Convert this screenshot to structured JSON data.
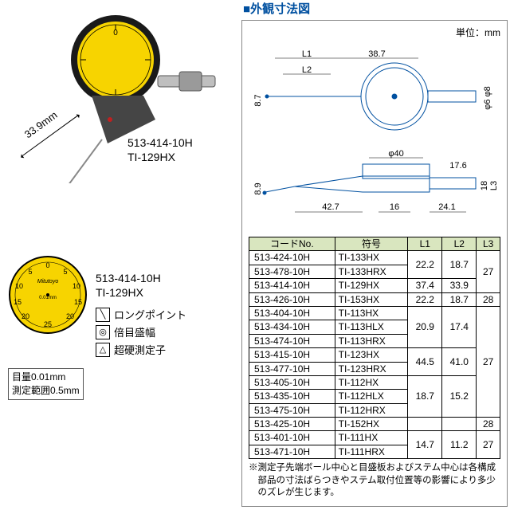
{
  "left": {
    "stylus_dim": "33.9mm",
    "model_top": {
      "code": "513-414-10H",
      "name": "TI-129HX"
    },
    "model_bottom": {
      "code": "513-414-10H",
      "name": "TI-129HX"
    },
    "features": [
      {
        "icon": "long-point-icon",
        "glyph": "▯",
        "label": "ロングポイント"
      },
      {
        "icon": "double-scale-icon",
        "glyph": "⦾",
        "label": "倍目盛幅"
      },
      {
        "icon": "carbide-icon",
        "glyph": "◬",
        "label": "超硬測定子"
      }
    ],
    "spec_box": {
      "line1": "目量0.01mm",
      "line2": "測定範囲0.5mm"
    },
    "dial": {
      "brand": "Mitutoyo",
      "grad": "0.01mm",
      "numerals": [
        "0",
        "5",
        "10",
        "15",
        "20",
        "25",
        "20",
        "15",
        "10",
        "5"
      ],
      "face_color": "#f7d400",
      "ring_color": "#1a1a1a"
    }
  },
  "right": {
    "title": "外観寸法図",
    "unit": "単位：mm",
    "diagram_dims": {
      "L1": "L1",
      "L2": "L2",
      "top_width": "38.7",
      "height1": "8.7",
      "dia_stem": "φ6 / φ8",
      "dia_bezel": "φ40",
      "side_17_6": "17.6",
      "side_18": "18",
      "L3": "L3",
      "height2": "8.9",
      "bot_42_7": "42.7",
      "bot_16": "16",
      "bot_24_1": "24.1"
    },
    "table": {
      "headers": [
        "コードNo.",
        "符号",
        "L1",
        "L2",
        "L3"
      ],
      "groups": [
        {
          "rows": [
            {
              "code": "513-424-10H",
              "sym": "TI-133HX"
            },
            {
              "code": "513-478-10H",
              "sym": "TI-133HRX"
            }
          ],
          "L1": "22.2",
          "L2": "18.7",
          "L3_span": false
        },
        {
          "rows": [
            {
              "code": "513-414-10H",
              "sym": "TI-129HX"
            }
          ],
          "L1": "37.4",
          "L2": "33.9",
          "L3_span": true,
          "L3": "27"
        },
        {
          "rows": [
            {
              "code": "513-426-10H",
              "sym": "TI-153HX"
            }
          ],
          "L1": "22.2",
          "L2": "18.7",
          "L3": "28"
        },
        {
          "rows": [
            {
              "code": "513-404-10H",
              "sym": "TI-113HX"
            },
            {
              "code": "513-434-10H",
              "sym": "TI-113HLX"
            },
            {
              "code": "513-474-10H",
              "sym": "TI-113HRX"
            }
          ],
          "L1": "20.9",
          "L2": "17.4",
          "L3_span": false
        },
        {
          "rows": [
            {
              "code": "513-415-10H",
              "sym": "TI-123HX"
            },
            {
              "code": "513-477-10H",
              "sym": "TI-123HRX"
            }
          ],
          "L1": "44.5",
          "L2": "41.0",
          "L3_span": true,
          "L3": "27"
        },
        {
          "rows": [
            {
              "code": "513-405-10H",
              "sym": "TI-112HX"
            },
            {
              "code": "513-435-10H",
              "sym": "TI-112HLX"
            },
            {
              "code": "513-475-10H",
              "sym": "TI-112HRX"
            }
          ],
          "L1": "18.7",
          "L2": "15.2",
          "L3_span": false
        },
        {
          "rows": [
            {
              "code": "513-425-10H",
              "sym": "TI-152HX"
            }
          ],
          "L1": "",
          "L2": "",
          "L3": "28"
        },
        {
          "rows": [
            {
              "code": "513-401-10H",
              "sym": "TI-111HX"
            },
            {
              "code": "513-471-10H",
              "sym": "TI-111HRX"
            }
          ],
          "L1": "14.7",
          "L2": "11.2",
          "L3": "27"
        }
      ]
    },
    "footnote": "※測定子先端ボール中心と目盛板およびステム中心は各構成部品の寸法ばらつきやステム取付位置等の影響により多少のズレが生じます。"
  },
  "colors": {
    "blue": "#0050a0",
    "header_bg": "#d9e6bf",
    "yellow": "#f7d400"
  }
}
